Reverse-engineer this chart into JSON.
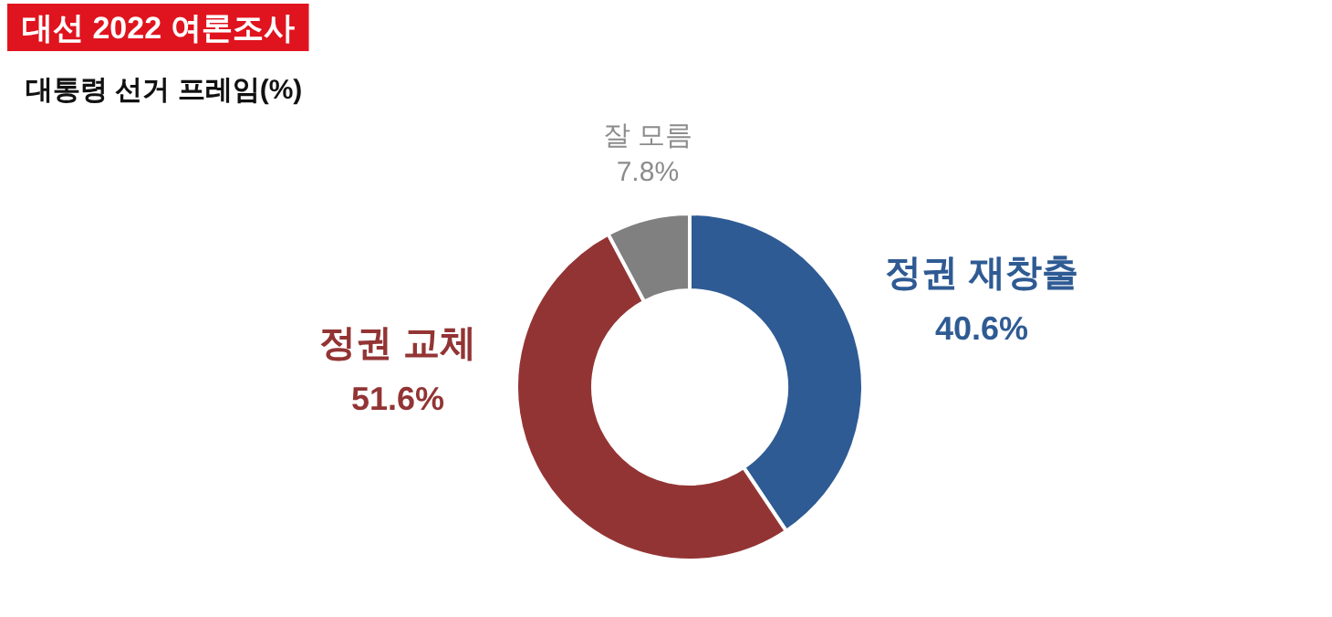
{
  "chart_data": {
    "type": "donut",
    "title": "대선 2022 여론조사",
    "subtitle": "대통령 선거 프레임(%)",
    "categories": [
      "정권 재창출",
      "정권 교체",
      "잘 모름"
    ],
    "values": [
      40.6,
      51.6,
      7.8
    ],
    "colors": [
      "#2f5b94",
      "#933434",
      "#808080"
    ],
    "value_labels": [
      "40.6%",
      "51.6%",
      "7.8%"
    ]
  }
}
